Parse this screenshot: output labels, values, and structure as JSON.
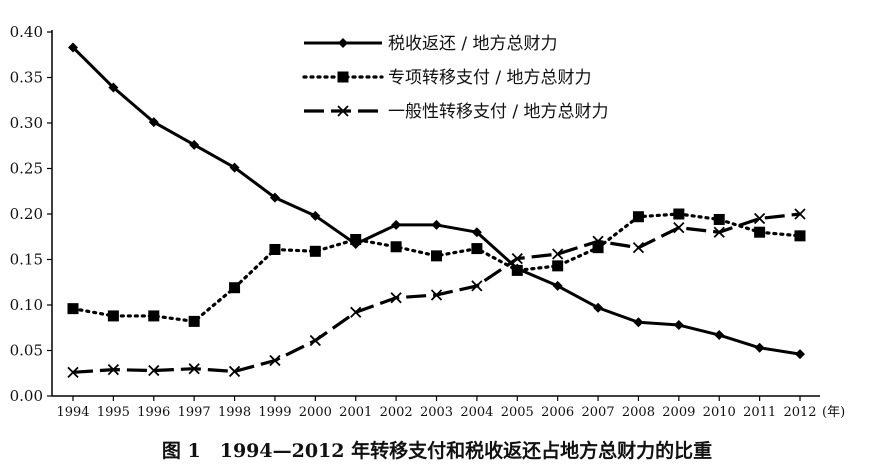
{
  "chart_data": {
    "type": "line",
    "categories": [
      "1994",
      "1995",
      "1996",
      "1997",
      "1998",
      "1999",
      "2000",
      "2001",
      "2002",
      "2003",
      "2004",
      "2005",
      "2006",
      "2007",
      "2008",
      "2009",
      "2010",
      "2011",
      "2012"
    ],
    "x_unit_label": "(年)",
    "ylim": [
      0.0,
      0.4
    ],
    "yticks": [
      "0.00",
      "0.05",
      "0.10",
      "0.15",
      "0.20",
      "0.25",
      "0.30",
      "0.35",
      "0.40"
    ],
    "grid": false,
    "legend_position": "top-center",
    "series": [
      {
        "name": "税收返还 / 地方总财力",
        "style": "solid",
        "marker": "diamond",
        "color": "#000000",
        "values": [
          0.383,
          0.339,
          0.301,
          0.276,
          0.251,
          0.218,
          0.198,
          0.167,
          0.188,
          0.188,
          0.18,
          0.14,
          0.121,
          0.097,
          0.081,
          0.078,
          0.067,
          0.053,
          0.046
        ]
      },
      {
        "name": "专项转移支付 / 地方总财力",
        "style": "dotted",
        "marker": "square",
        "color": "#000000",
        "values": [
          0.096,
          0.088,
          0.088,
          0.082,
          0.119,
          0.161,
          0.159,
          0.172,
          0.164,
          0.154,
          0.162,
          0.138,
          0.143,
          0.163,
          0.197,
          0.2,
          0.194,
          0.18,
          0.176
        ]
      },
      {
        "name": "一般性转移支付 / 地方总财力",
        "style": "dashed",
        "marker": "cross",
        "color": "#000000",
        "values": [
          0.026,
          0.029,
          0.028,
          0.03,
          0.027,
          0.039,
          0.061,
          0.092,
          0.108,
          0.111,
          0.121,
          0.151,
          0.156,
          0.17,
          0.163,
          0.185,
          0.18,
          0.195,
          0.2
        ]
      }
    ]
  },
  "caption": "图 1　1994—2012 年转移支付和税收返还占地方总财力的比重"
}
